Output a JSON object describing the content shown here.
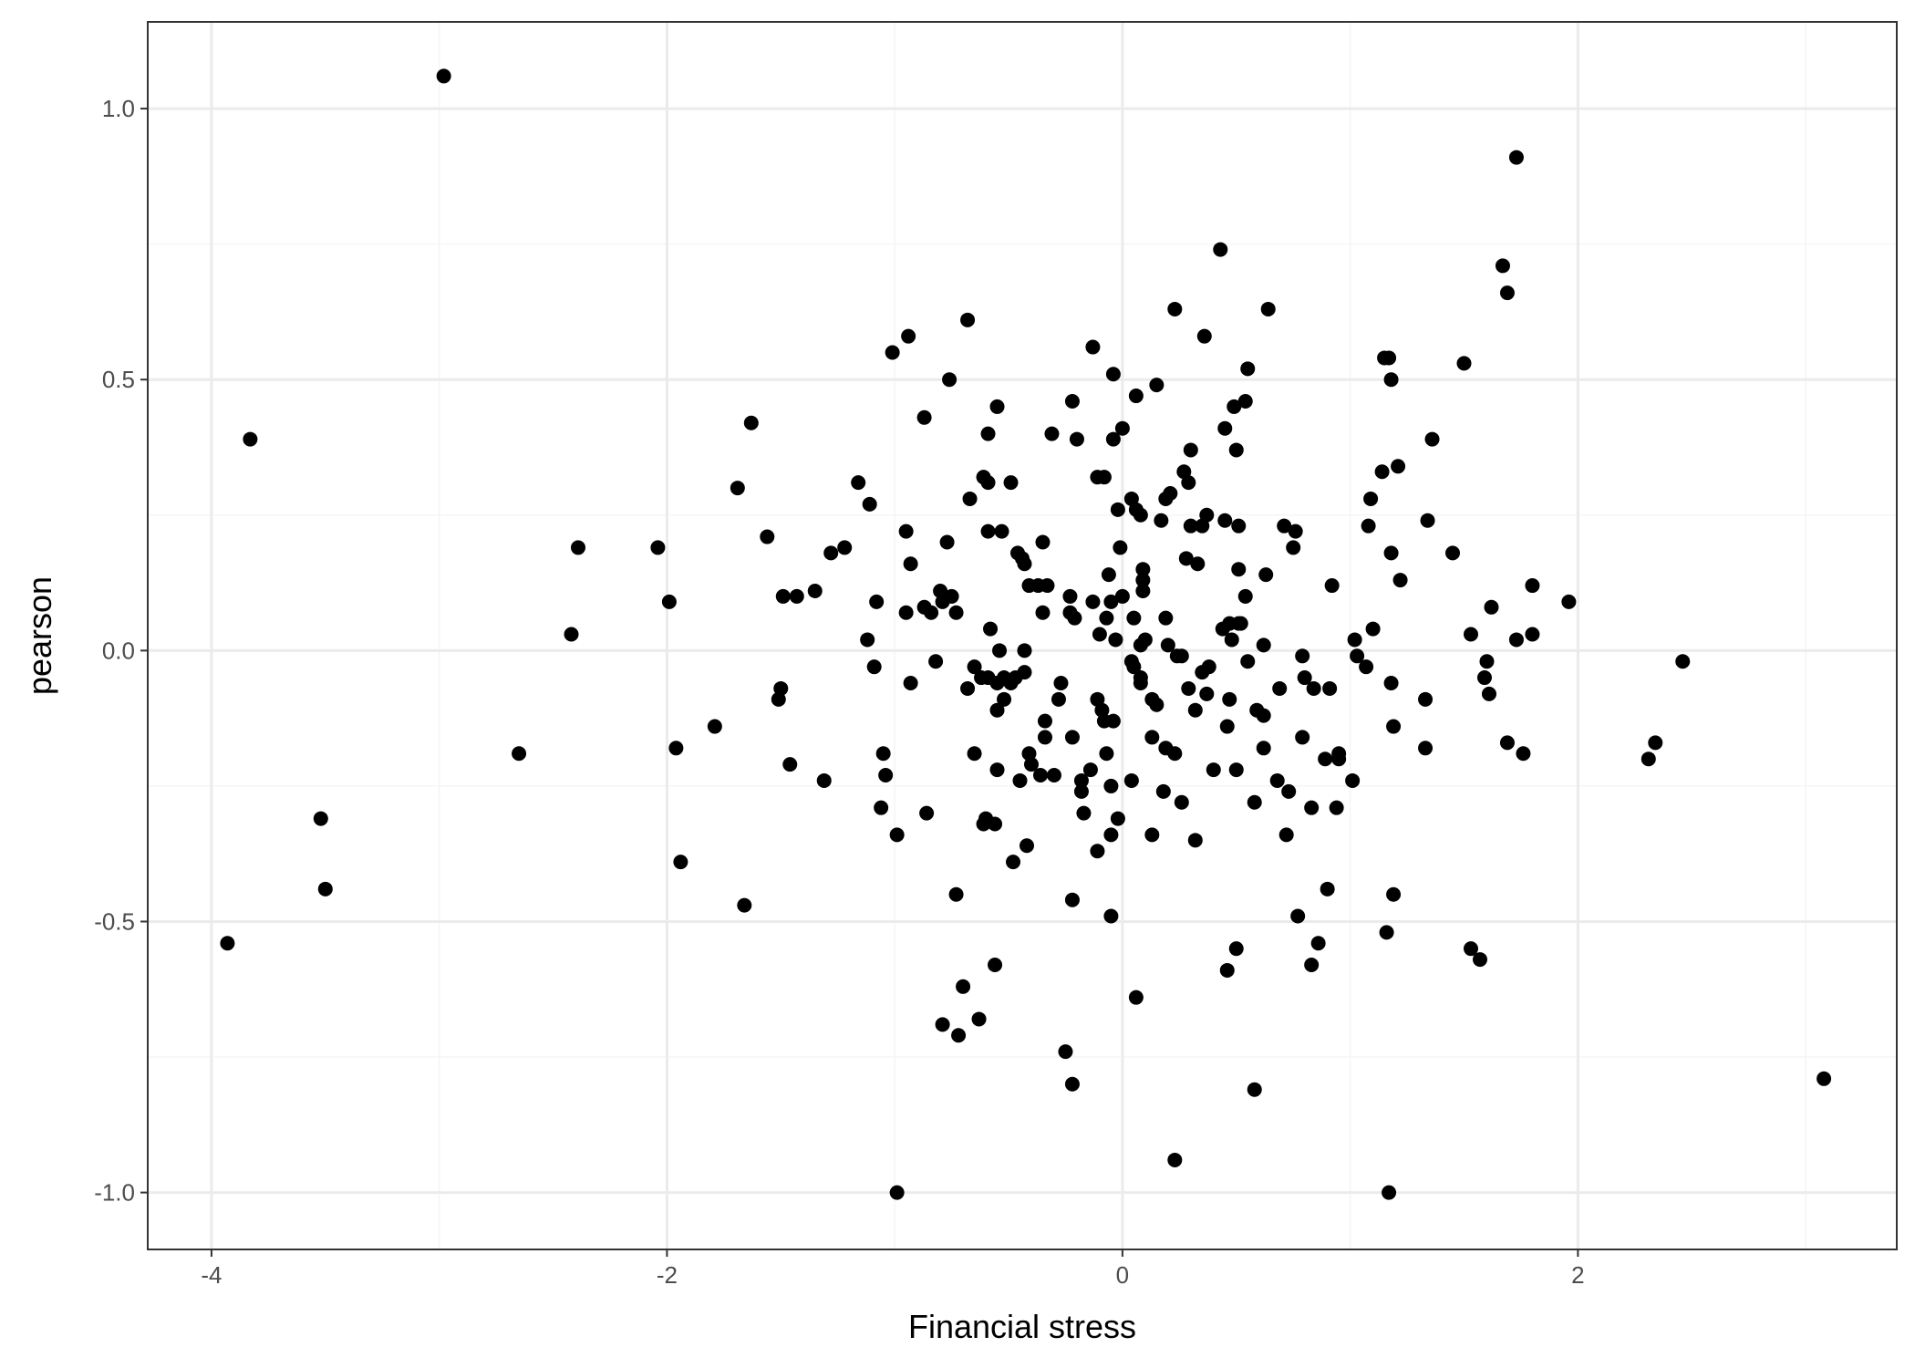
{
  "chart_data": {
    "type": "scatter",
    "xlabel": "Financial stress",
    "ylabel": "pearson",
    "xlim": [
      -4.28,
      3.4
    ],
    "ylim": [
      -1.105,
      1.16
    ],
    "x_ticks": [
      -4,
      -2,
      0,
      2
    ],
    "x_tick_labels": [
      "-4",
      "-2",
      "0",
      "2"
    ],
    "y_ticks": [
      -1.0,
      -0.5,
      0.0,
      0.5,
      1.0
    ],
    "y_tick_labels": [
      "-1.0",
      "-0.5",
      "0.0",
      "0.5",
      "1.0"
    ],
    "x_minor_ticks": [
      -3,
      -1,
      1,
      3
    ],
    "y_minor_ticks": [
      -0.75,
      -0.25,
      0.25,
      0.75
    ],
    "grid": true,
    "legend": "none",
    "colors": {
      "point": "#000000",
      "grid_major": "#ebebeb",
      "grid_minor": "#f5f5f5",
      "panel_border": "#333333",
      "tick_label": "#4d4d4d"
    },
    "series": [
      {
        "points": [
          [
            -2.98,
            1.06
          ],
          [
            1.73,
            0.91
          ],
          [
            0.43,
            0.74
          ],
          [
            1.67,
            0.71
          ],
          [
            1.69,
            0.66
          ],
          [
            -0.68,
            0.61
          ],
          [
            0.23,
            0.63
          ],
          [
            0.64,
            0.63
          ],
          [
            -0.94,
            0.58
          ],
          [
            -0.13,
            0.56
          ],
          [
            0.36,
            0.58
          ],
          [
            -1.01,
            0.55
          ],
          [
            1.15,
            0.54
          ],
          [
            1.17,
            0.54
          ],
          [
            1.5,
            0.53
          ],
          [
            -0.04,
            0.51
          ],
          [
            0.55,
            0.52
          ],
          [
            1.18,
            0.5
          ],
          [
            -0.76,
            0.5
          ],
          [
            0.15,
            0.49
          ],
          [
            0.06,
            0.47
          ],
          [
            0.54,
            0.46
          ],
          [
            -0.22,
            0.46
          ],
          [
            -0.55,
            0.45
          ],
          [
            0.49,
            0.45
          ],
          [
            -0.87,
            0.43
          ],
          [
            -1.63,
            0.42
          ],
          [
            0.0,
            0.41
          ],
          [
            0.45,
            0.41
          ],
          [
            -0.31,
            0.4
          ],
          [
            -0.59,
            0.4
          ],
          [
            -0.2,
            0.39
          ],
          [
            -3.83,
            0.39
          ],
          [
            -0.04,
            0.39
          ],
          [
            1.36,
            0.39
          ],
          [
            0.5,
            0.37
          ],
          [
            0.3,
            0.37
          ],
          [
            1.21,
            0.34
          ],
          [
            0.27,
            0.33
          ],
          [
            1.14,
            0.33
          ],
          [
            -0.61,
            0.32
          ],
          [
            -0.49,
            0.31
          ],
          [
            -0.11,
            0.32
          ],
          [
            -0.08,
            0.32
          ],
          [
            -0.59,
            0.31
          ],
          [
            0.29,
            0.31
          ],
          [
            -1.16,
            0.31
          ],
          [
            0.21,
            0.29
          ],
          [
            -1.69,
            0.3
          ],
          [
            0.19,
            0.28
          ],
          [
            0.04,
            0.28
          ],
          [
            1.09,
            0.28
          ],
          [
            -0.67,
            0.28
          ],
          [
            -1.11,
            0.27
          ],
          [
            -0.02,
            0.26
          ],
          [
            0.08,
            0.25
          ],
          [
            0.37,
            0.25
          ],
          [
            0.06,
            0.26
          ],
          [
            0.17,
            0.24
          ],
          [
            1.34,
            0.24
          ],
          [
            0.51,
            0.23
          ],
          [
            0.3,
            0.23
          ],
          [
            0.35,
            0.23
          ],
          [
            0.45,
            0.24
          ],
          [
            0.71,
            0.23
          ],
          [
            1.08,
            0.23
          ],
          [
            0.76,
            0.22
          ],
          [
            -0.59,
            0.22
          ],
          [
            -0.95,
            0.22
          ],
          [
            -1.56,
            0.21
          ],
          [
            -0.53,
            0.22
          ],
          [
            -0.77,
            0.2
          ],
          [
            -1.22,
            0.19
          ],
          [
            -2.04,
            0.19
          ],
          [
            -2.39,
            0.19
          ],
          [
            -0.35,
            0.2
          ],
          [
            -0.01,
            0.19
          ],
          [
            -0.46,
            0.18
          ],
          [
            0.75,
            0.19
          ],
          [
            -1.28,
            0.18
          ],
          [
            0.28,
            0.17
          ],
          [
            1.45,
            0.18
          ],
          [
            1.18,
            0.18
          ],
          [
            -0.44,
            0.17
          ],
          [
            -0.93,
            0.16
          ],
          [
            0.33,
            0.16
          ],
          [
            0.51,
            0.15
          ],
          [
            -0.43,
            0.16
          ],
          [
            0.09,
            0.15
          ],
          [
            0.63,
            0.14
          ],
          [
            -0.06,
            0.14
          ],
          [
            1.22,
            0.13
          ],
          [
            0.09,
            0.13
          ],
          [
            -0.41,
            0.12
          ],
          [
            -0.33,
            0.12
          ],
          [
            -0.8,
            0.11
          ],
          [
            -0.37,
            0.12
          ],
          [
            0.09,
            0.11
          ],
          [
            0.92,
            0.12
          ],
          [
            1.8,
            0.12
          ],
          [
            -1.35,
            0.11
          ],
          [
            -0.75,
            0.1
          ],
          [
            -0.23,
            0.1
          ],
          [
            -1.49,
            0.1
          ],
          [
            -0.13,
            0.09
          ],
          [
            -1.43,
            0.1
          ],
          [
            0.54,
            0.1
          ],
          [
            0.0,
            0.1
          ],
          [
            -0.79,
            0.09
          ],
          [
            1.96,
            0.09
          ],
          [
            -1.08,
            0.09
          ],
          [
            -0.05,
            0.09
          ],
          [
            -0.87,
            0.08
          ],
          [
            -1.99,
            0.09
          ],
          [
            1.62,
            0.08
          ],
          [
            -0.95,
            0.07
          ],
          [
            -0.84,
            0.07
          ],
          [
            -0.35,
            0.07
          ],
          [
            -0.23,
            0.07
          ],
          [
            -0.73,
            0.07
          ],
          [
            -0.07,
            0.06
          ],
          [
            -0.21,
            0.06
          ],
          [
            0.19,
            0.06
          ],
          [
            0.05,
            0.06
          ],
          [
            0.51,
            0.05
          ],
          [
            0.47,
            0.05
          ],
          [
            0.52,
            0.05
          ],
          [
            0.44,
            0.04
          ],
          [
            1.1,
            0.04
          ],
          [
            -0.58,
            0.04
          ],
          [
            1.8,
            0.03
          ],
          [
            -2.42,
            0.03
          ],
          [
            1.53,
            0.03
          ],
          [
            0.1,
            0.02
          ],
          [
            -0.1,
            0.03
          ],
          [
            -1.12,
            0.02
          ],
          [
            1.73,
            0.02
          ],
          [
            0.48,
            0.02
          ],
          [
            0.08,
            0.01
          ],
          [
            0.2,
            0.01
          ],
          [
            1.02,
            0.02
          ],
          [
            0.62,
            0.01
          ],
          [
            -0.03,
            0.02
          ],
          [
            -0.43,
            0.0
          ],
          [
            -0.54,
            0.0
          ],
          [
            0.24,
            -0.01
          ],
          [
            1.03,
            -0.01
          ],
          [
            0.55,
            -0.02
          ],
          [
            0.38,
            -0.03
          ],
          [
            0.26,
            -0.01
          ],
          [
            1.6,
            -0.02
          ],
          [
            2.46,
            -0.02
          ],
          [
            0.79,
            -0.01
          ],
          [
            0.04,
            -0.02
          ],
          [
            -0.65,
            -0.03
          ],
          [
            -0.82,
            -0.02
          ],
          [
            0.05,
            -0.03
          ],
          [
            1.07,
            -0.03
          ],
          [
            0.35,
            -0.04
          ],
          [
            -0.43,
            -0.04
          ],
          [
            -1.09,
            -0.03
          ],
          [
            -0.62,
            -0.05
          ],
          [
            -0.52,
            -0.05
          ],
          [
            0.8,
            -0.05
          ],
          [
            -0.47,
            -0.05
          ],
          [
            0.08,
            -0.05
          ],
          [
            1.59,
            -0.05
          ],
          [
            -0.27,
            -0.06
          ],
          [
            -0.59,
            -0.05
          ],
          [
            -0.49,
            -0.06
          ],
          [
            0.84,
            -0.07
          ],
          [
            0.69,
            -0.07
          ],
          [
            1.18,
            -0.06
          ],
          [
            -0.55,
            -0.06
          ],
          [
            -0.68,
            -0.07
          ],
          [
            0.91,
            -0.07
          ],
          [
            -0.93,
            -0.06
          ],
          [
            -1.5,
            -0.07
          ],
          [
            0.08,
            -0.06
          ],
          [
            0.29,
            -0.07
          ],
          [
            0.37,
            -0.08
          ],
          [
            -0.52,
            -0.09
          ],
          [
            1.61,
            -0.08
          ],
          [
            0.13,
            -0.09
          ],
          [
            -0.11,
            -0.09
          ],
          [
            -0.28,
            -0.09
          ],
          [
            0.47,
            -0.09
          ],
          [
            1.33,
            -0.09
          ],
          [
            -1.51,
            -0.09
          ],
          [
            0.15,
            -0.1
          ],
          [
            -0.09,
            -0.11
          ],
          [
            -0.55,
            -0.11
          ],
          [
            0.59,
            -0.11
          ],
          [
            0.32,
            -0.11
          ],
          [
            -0.08,
            -0.13
          ],
          [
            -0.34,
            -0.13
          ],
          [
            0.62,
            -0.12
          ],
          [
            -0.04,
            -0.13
          ],
          [
            0.46,
            -0.14
          ],
          [
            -1.79,
            -0.14
          ],
          [
            1.19,
            -0.14
          ],
          [
            0.79,
            -0.16
          ],
          [
            -0.34,
            -0.16
          ],
          [
            -0.22,
            -0.16
          ],
          [
            0.13,
            -0.16
          ],
          [
            -1.96,
            -0.18
          ],
          [
            1.69,
            -0.17
          ],
          [
            0.62,
            -0.18
          ],
          [
            2.34,
            -0.17
          ],
          [
            1.33,
            -0.18
          ],
          [
            -0.41,
            -0.19
          ],
          [
            -2.65,
            -0.19
          ],
          [
            -1.05,
            -0.19
          ],
          [
            0.19,
            -0.18
          ],
          [
            0.95,
            -0.19
          ],
          [
            1.76,
            -0.19
          ],
          [
            -0.65,
            -0.19
          ],
          [
            0.23,
            -0.19
          ],
          [
            -0.07,
            -0.19
          ],
          [
            0.89,
            -0.2
          ],
          [
            2.31,
            -0.2
          ],
          [
            0.95,
            -0.2
          ],
          [
            -0.4,
            -0.21
          ],
          [
            -0.55,
            -0.22
          ],
          [
            -1.46,
            -0.21
          ],
          [
            0.4,
            -0.22
          ],
          [
            -0.14,
            -0.22
          ],
          [
            0.5,
            -0.22
          ],
          [
            1.01,
            -0.24
          ],
          [
            -1.04,
            -0.23
          ],
          [
            -0.3,
            -0.23
          ],
          [
            -0.36,
            -0.23
          ],
          [
            -0.45,
            -0.24
          ],
          [
            -0.05,
            -0.25
          ],
          [
            0.04,
            -0.24
          ],
          [
            -1.31,
            -0.24
          ],
          [
            0.68,
            -0.24
          ],
          [
            -0.18,
            -0.24
          ],
          [
            0.73,
            -0.26
          ],
          [
            -0.18,
            -0.26
          ],
          [
            0.18,
            -0.26
          ],
          [
            0.26,
            -0.28
          ],
          [
            0.58,
            -0.28
          ],
          [
            0.83,
            -0.29
          ],
          [
            0.94,
            -0.29
          ],
          [
            -1.06,
            -0.29
          ],
          [
            -0.86,
            -0.3
          ],
          [
            -0.17,
            -0.3
          ],
          [
            -0.02,
            -0.31
          ],
          [
            -3.52,
            -0.31
          ],
          [
            -0.6,
            -0.31
          ],
          [
            -0.61,
            -0.32
          ],
          [
            -0.56,
            -0.32
          ],
          [
            -0.99,
            -0.34
          ],
          [
            0.13,
            -0.34
          ],
          [
            0.72,
            -0.34
          ],
          [
            -0.05,
            -0.34
          ],
          [
            0.32,
            -0.35
          ],
          [
            -0.42,
            -0.36
          ],
          [
            -0.11,
            -0.37
          ],
          [
            -0.48,
            -0.39
          ],
          [
            -1.94,
            -0.39
          ],
          [
            -3.5,
            -0.44
          ],
          [
            0.9,
            -0.44
          ],
          [
            1.19,
            -0.45
          ],
          [
            -0.73,
            -0.45
          ],
          [
            -0.22,
            -0.46
          ],
          [
            -1.66,
            -0.47
          ],
          [
            0.77,
            -0.49
          ],
          [
            -0.05,
            -0.49
          ],
          [
            1.16,
            -0.52
          ],
          [
            -3.93,
            -0.54
          ],
          [
            0.86,
            -0.54
          ],
          [
            0.5,
            -0.55
          ],
          [
            1.53,
            -0.55
          ],
          [
            1.57,
            -0.57
          ],
          [
            -0.56,
            -0.58
          ],
          [
            0.83,
            -0.58
          ],
          [
            0.46,
            -0.59
          ],
          [
            -0.7,
            -0.62
          ],
          [
            0.06,
            -0.64
          ],
          [
            -0.63,
            -0.68
          ],
          [
            -0.79,
            -0.69
          ],
          [
            -0.72,
            -0.71
          ],
          [
            -0.25,
            -0.74
          ],
          [
            3.08,
            -0.79
          ],
          [
            -0.22,
            -0.8
          ],
          [
            0.58,
            -0.81
          ],
          [
            0.23,
            -0.94
          ],
          [
            -0.99,
            -1.0
          ],
          [
            1.17,
            -1.0
          ]
        ]
      }
    ]
  }
}
